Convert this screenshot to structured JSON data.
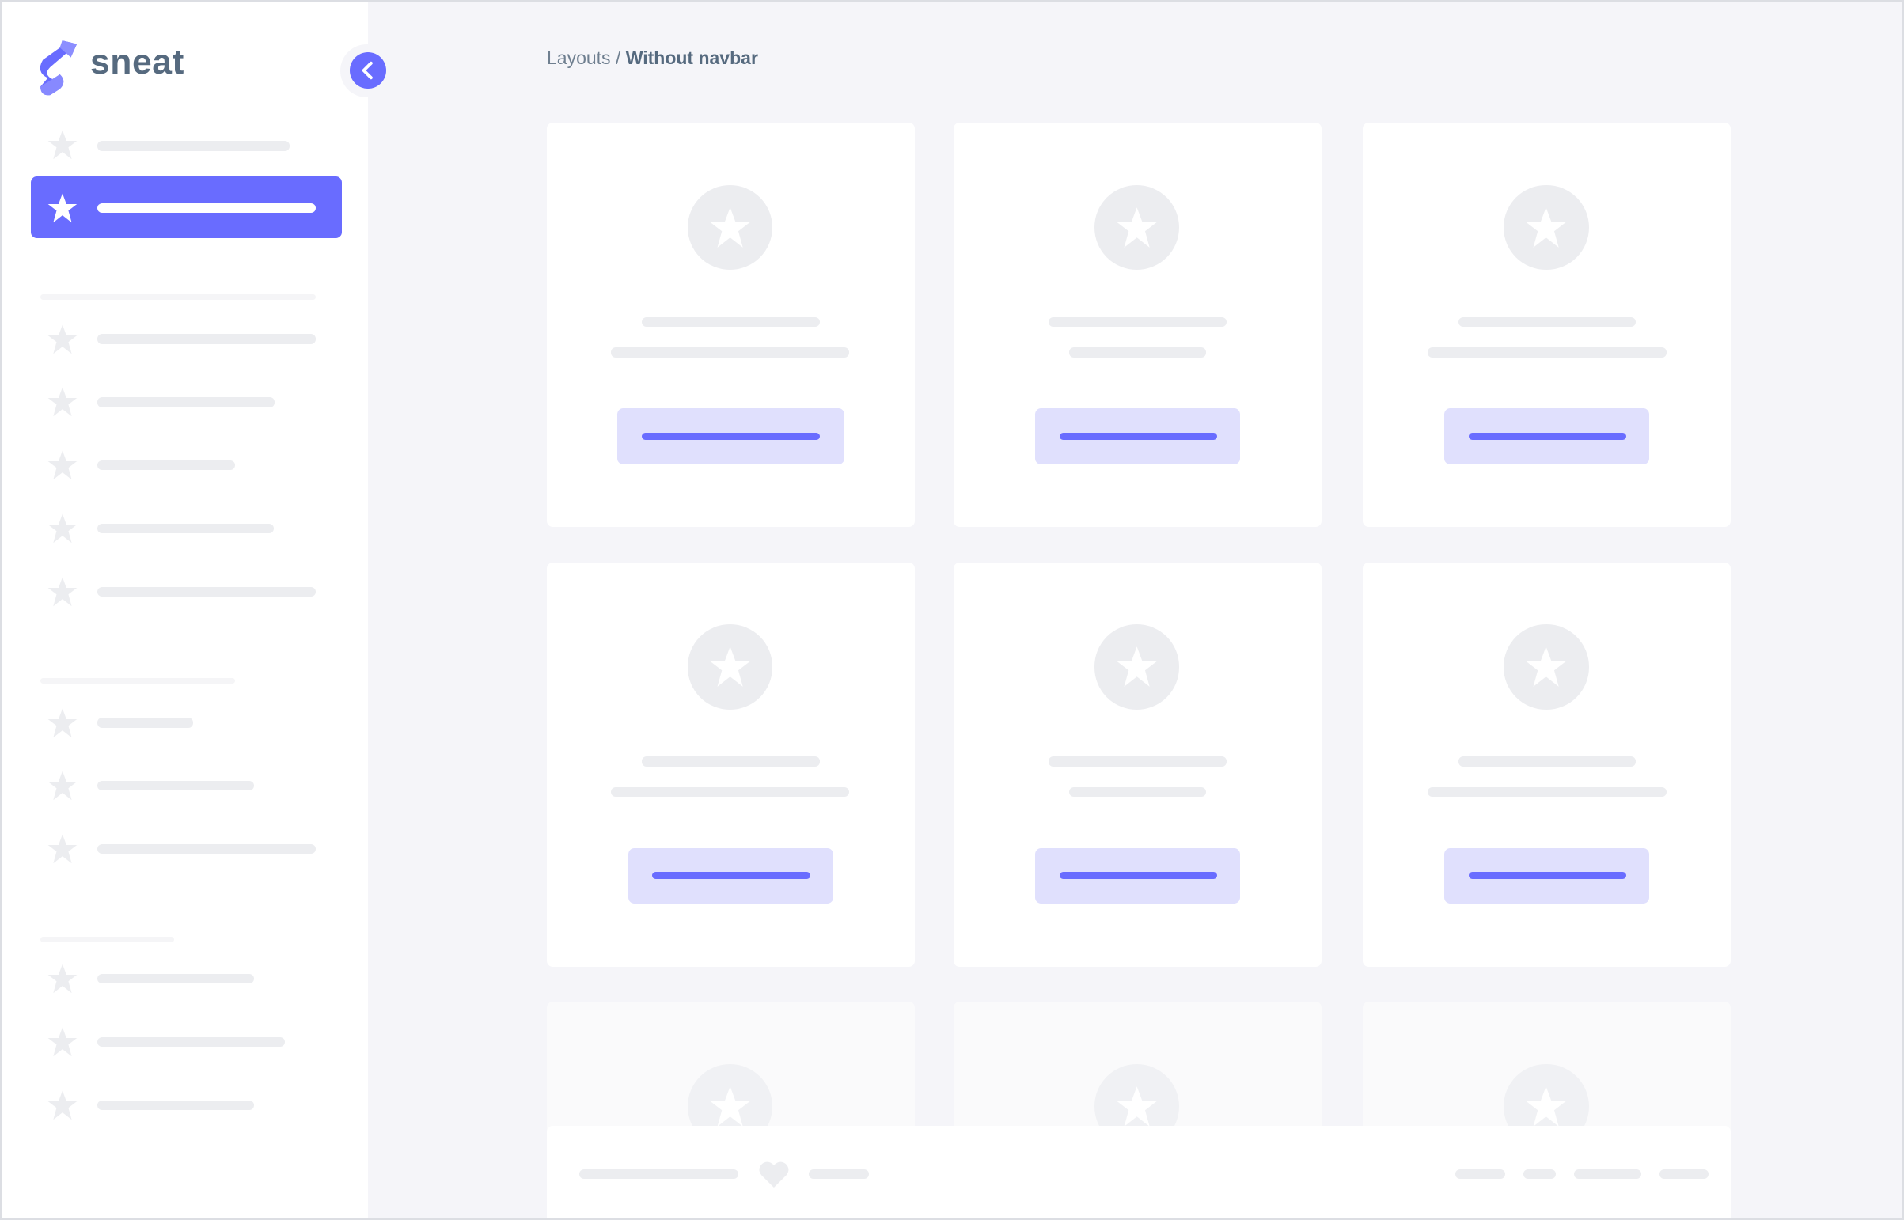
{
  "brand": {
    "name": "sneat",
    "colors": {
      "primary": "#696cff",
      "text": "#566a7f",
      "placeholder": "#ecedf0",
      "background": "#f5f5f9"
    }
  },
  "sidebar": {
    "toggle_icon": "chevron-left-icon",
    "item_icon": "star-icon",
    "active_index": 1
  },
  "breadcrumb": {
    "parent": "Layouts",
    "separator": "/",
    "current": "Without navbar"
  },
  "footer": {
    "icon": "heart-icon"
  }
}
